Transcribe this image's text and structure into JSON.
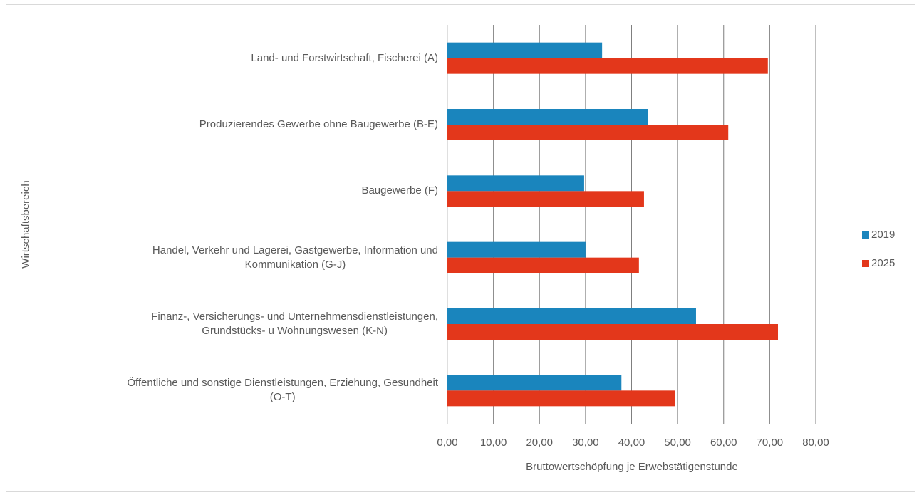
{
  "chart_data": {
    "type": "bar",
    "orientation": "horizontal",
    "x_axis_label": "Bruttowertschöpfung je Erwebstätigenstunde",
    "y_axis_label": "Wirtschaftsbereich",
    "categories": [
      "Land- und Forstwirtschaft, Fischerei (A)",
      "Produzierendes Gewerbe ohne Baugewerbe (B-E)",
      "Baugewerbe (F)",
      "Handel, Verkehr und Lagerei, Gastgewerbe, Information und\nKommunikation (G-J)",
      "Finanz-, Versicherungs- und Unternehmensdienstleistungen,\nGrundstücks- u Wohnungswesen (K-N)",
      "Öffentliche und sonstige Dienstleistungen, Erziehung, Gesundheit\n(O-T)"
    ],
    "series": [
      {
        "name": "2019",
        "color": "#1a85bd",
        "values": [
          33.6,
          43.5,
          29.7,
          30.0,
          54.0,
          37.8
        ]
      },
      {
        "name": "2025",
        "color": "#e3371b",
        "values": [
          69.6,
          61.0,
          42.7,
          41.6,
          71.8,
          49.4
        ]
      }
    ],
    "xlim": [
      0,
      80
    ],
    "xticks": [
      {
        "value": 0,
        "label": "0,00"
      },
      {
        "value": 10,
        "label": "10,00"
      },
      {
        "value": 20,
        "label": "20,00"
      },
      {
        "value": 30,
        "label": "30,00"
      },
      {
        "value": 40,
        "label": "40,00"
      },
      {
        "value": 50,
        "label": "50,00"
      },
      {
        "value": 60,
        "label": "60,00"
      },
      {
        "value": 70,
        "label": "70,00"
      },
      {
        "value": 80,
        "label": "80,00"
      }
    ],
    "grid": true,
    "legend": "right"
  }
}
